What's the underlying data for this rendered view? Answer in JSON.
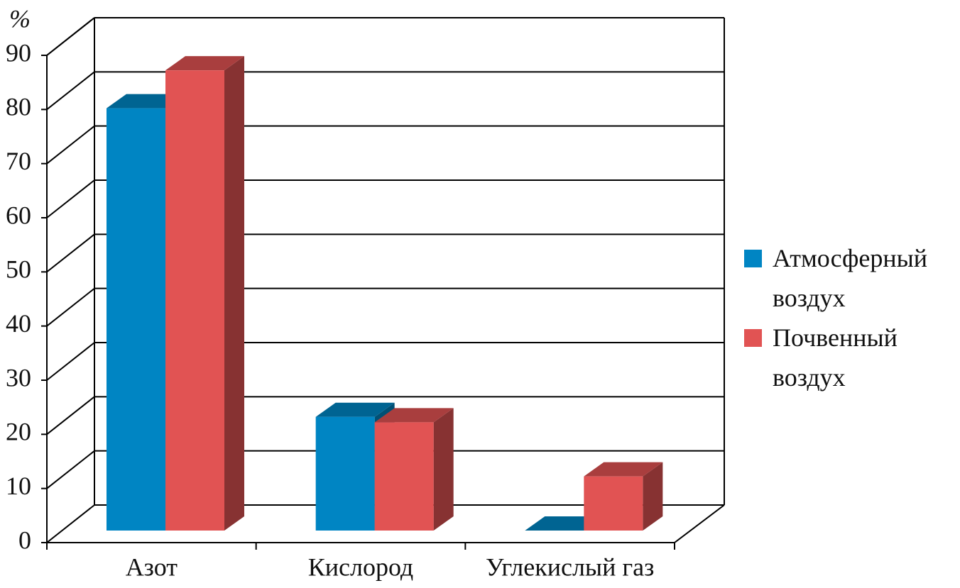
{
  "chart_data": {
    "type": "bar3d",
    "y_label": "%",
    "categories": [
      "Азот",
      "Кислород",
      "Углекислый газ"
    ],
    "series": [
      {
        "name": "Атмосферный воздух",
        "color": "#0085c3",
        "values": [
          78,
          21,
          0
        ]
      },
      {
        "name": "Почвенный воздух",
        "color": "#e15353",
        "values": [
          85,
          20,
          10
        ]
      }
    ],
    "ylim": [
      0,
      90
    ],
    "yticks": [
      0,
      10,
      20,
      30,
      40,
      50,
      60,
      70,
      80,
      90
    ],
    "grid": true
  }
}
